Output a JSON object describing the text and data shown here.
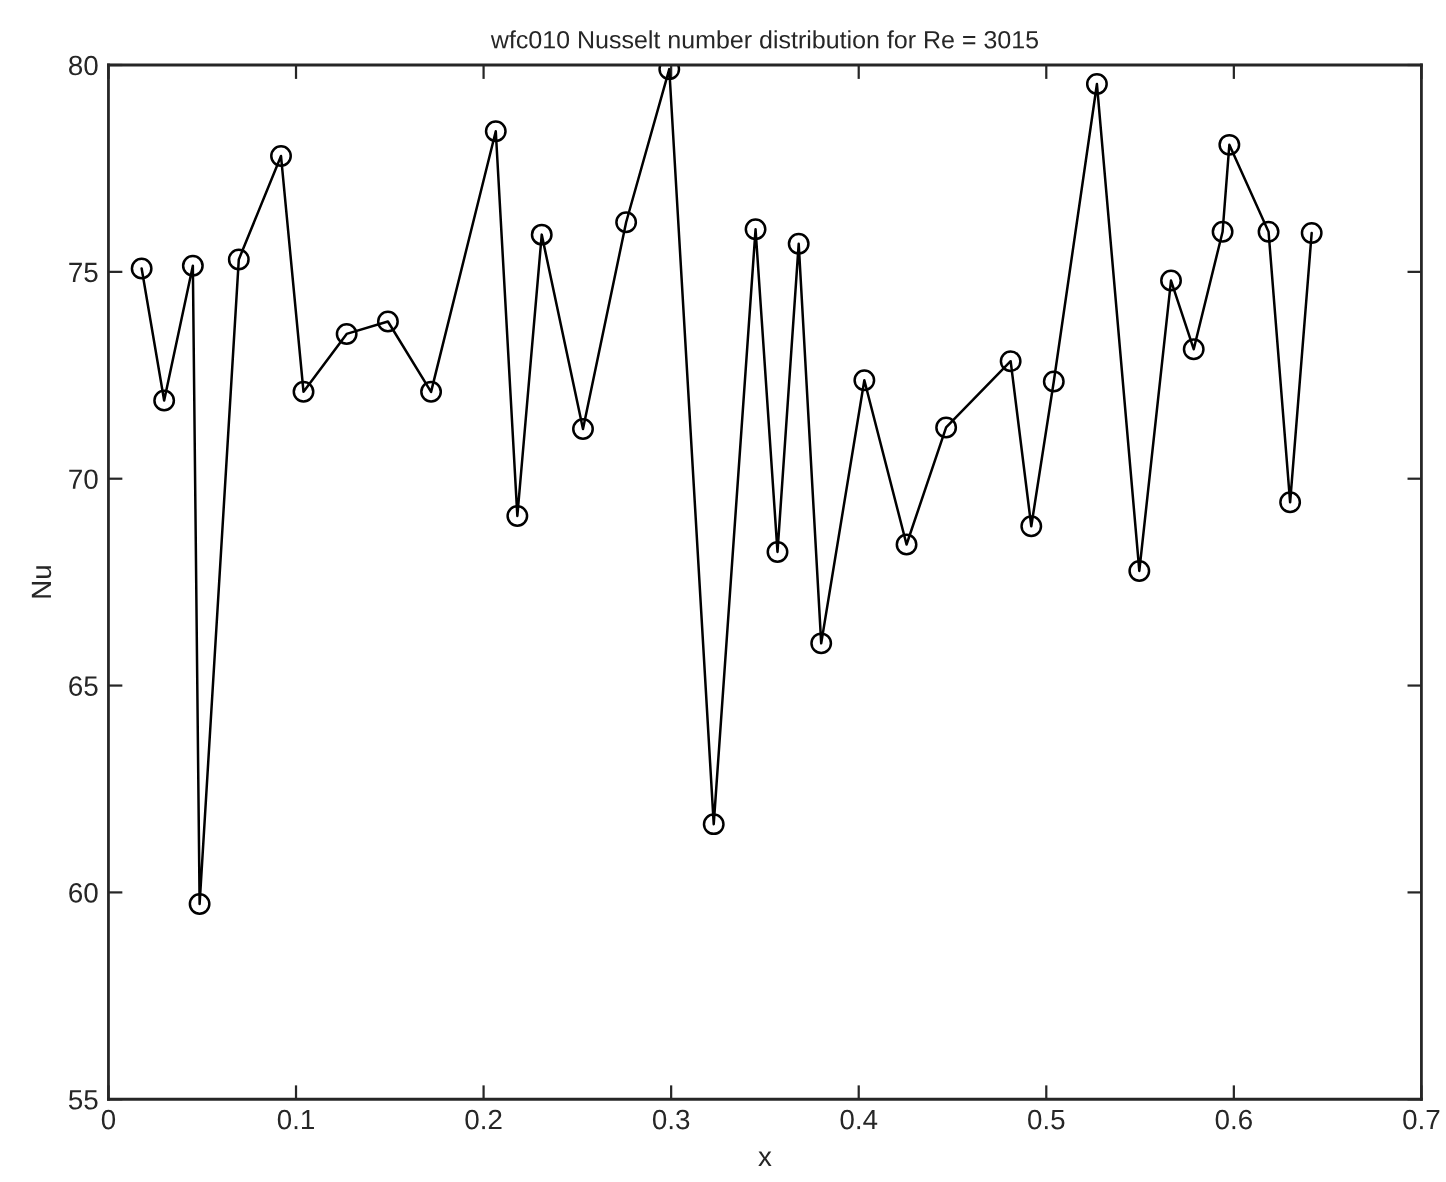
{
  "chart_data": {
    "type": "line",
    "title": "wfc010 Nusselt number distribution for Re = 3015",
    "xlabel": "x",
    "ylabel": "Nu",
    "series": [
      {
        "color": "#000000",
        "x": [
          0.0177,
          0.0297,
          0.045,
          0.0486,
          0.0695,
          0.092,
          0.104,
          0.127,
          0.149,
          0.172,
          0.2065,
          0.218,
          0.231,
          0.253,
          0.276,
          0.299,
          0.3227,
          0.345,
          0.3567,
          0.368,
          0.38,
          0.403,
          0.4255,
          0.4466,
          0.481,
          0.492,
          0.504,
          0.527,
          0.5496,
          0.5665,
          0.5786,
          0.594,
          0.5976,
          0.6185,
          0.63,
          0.6415
        ],
        "values": [
          75.08,
          71.89,
          75.15,
          59.72,
          75.3,
          77.8,
          72.1,
          73.5,
          73.8,
          72.1,
          78.4,
          69.1,
          75.9,
          71.2,
          76.2,
          79.9,
          61.65,
          76.03,
          68.23,
          75.68,
          66.02,
          72.38,
          68.41,
          71.24,
          72.84,
          68.85,
          72.35,
          79.54,
          67.77,
          74.79,
          73.13,
          75.97,
          78.07,
          75.97,
          69.43,
          75.94
        ]
      }
    ],
    "marker": "circle",
    "line_style": "solid",
    "grid": false,
    "xlim": [
      0,
      0.7
    ],
    "xticks": [
      0,
      0.1,
      0.2,
      0.3,
      0.4,
      0.5,
      0.6,
      0.7
    ],
    "ylim": [
      55,
      80
    ],
    "yticks": [
      55,
      60,
      65,
      70,
      75,
      80
    ]
  }
}
